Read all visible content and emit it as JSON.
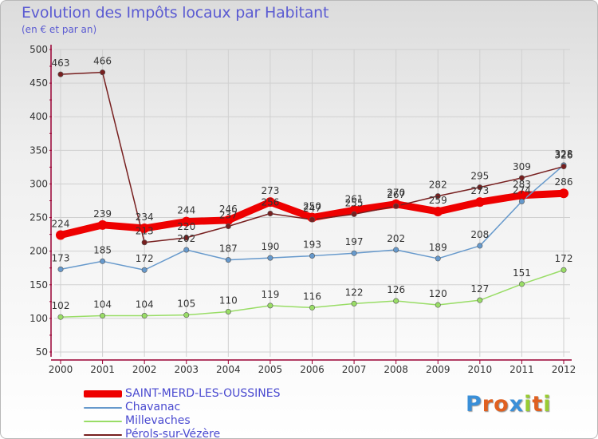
{
  "header": {
    "title": "Evolution des Impôts locaux par Habitant",
    "subtitle": "(en € et par an)"
  },
  "colors": {
    "axis": "#990033",
    "grid": "#d0d0d0",
    "series": [
      "#ee0000",
      "#6699cc",
      "#99dd66",
      "#771f1f"
    ]
  },
  "logo": {
    "text": "Proxiti",
    "letter_colors": [
      "#3a8fd8",
      "#e06020",
      "#e06020",
      "#3a8fd8",
      "#99cc33",
      "#e06020",
      "#99cc33"
    ]
  },
  "chart_data": {
    "type": "line",
    "title": "Evolution des Impôts locaux par Habitant",
    "subtitle": "(en € et par an)",
    "xlabel": "",
    "ylabel": "",
    "x": [
      "2000",
      "2001",
      "2002",
      "2003",
      "2004",
      "2005",
      "2006",
      "2007",
      "2008",
      "2009",
      "2010",
      "2011",
      "2012"
    ],
    "ylim": [
      50,
      500
    ],
    "yticks": [
      50,
      100,
      150,
      200,
      250,
      300,
      350,
      400,
      450,
      500
    ],
    "grid": true,
    "legend_position": "bottom-left",
    "series": [
      {
        "name": "SAINT-MERD-LES-OUSSINES",
        "values": [
          224,
          239,
          234,
          244,
          246,
          273,
          250,
          261,
          270,
          259,
          273,
          283,
          286
        ]
      },
      {
        "name": "Chavanac",
        "values": [
          173,
          185,
          172,
          202,
          187,
          190,
          193,
          197,
          202,
          189,
          208,
          274,
          328
        ]
      },
      {
        "name": "Millevaches",
        "values": [
          102,
          104,
          104,
          105,
          110,
          119,
          116,
          122,
          126,
          120,
          127,
          151,
          172
        ]
      },
      {
        "name": "Pérols-sur-Vézère",
        "values": [
          463,
          466,
          213,
          220,
          237,
          256,
          247,
          255,
          267,
          282,
          295,
          309,
          326
        ]
      }
    ],
    "data_labels_shown": [
      [
        224,
        239,
        234,
        244,
        246,
        273,
        250,
        261,
        270,
        259,
        273,
        283,
        286
      ],
      [
        173,
        185,
        172,
        202,
        187,
        190,
        193,
        197,
        202,
        189,
        208,
        274,
        328
      ],
      [
        102,
        104,
        104,
        105,
        110,
        119,
        116,
        122,
        126,
        120,
        127,
        151,
        172
      ],
      [
        463,
        466,
        213,
        220,
        237,
        256,
        247,
        255,
        267,
        282,
        295,
        309,
        326
      ]
    ]
  }
}
